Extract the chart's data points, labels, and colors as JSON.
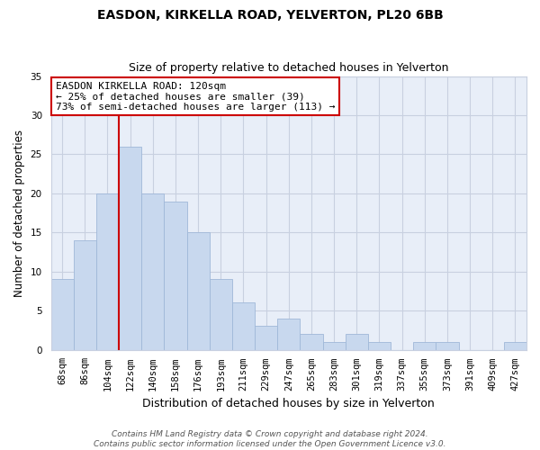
{
  "title": "EASDON, KIRKELLA ROAD, YELVERTON, PL20 6BB",
  "subtitle": "Size of property relative to detached houses in Yelverton",
  "xlabel": "Distribution of detached houses by size in Yelverton",
  "ylabel": "Number of detached properties",
  "bar_labels": [
    "68sqm",
    "86sqm",
    "104sqm",
    "122sqm",
    "140sqm",
    "158sqm",
    "176sqm",
    "193sqm",
    "211sqm",
    "229sqm",
    "247sqm",
    "265sqm",
    "283sqm",
    "301sqm",
    "319sqm",
    "337sqm",
    "355sqm",
    "373sqm",
    "391sqm",
    "409sqm",
    "427sqm"
  ],
  "bar_values": [
    9,
    14,
    20,
    26,
    20,
    19,
    15,
    9,
    6,
    3,
    4,
    2,
    1,
    2,
    1,
    0,
    1,
    1,
    0,
    0,
    1
  ],
  "bar_color": "#c8d8ee",
  "bar_edge_color": "#a0b8d8",
  "plot_bg_color": "#e8eef8",
  "vline_index": 3,
  "vline_color": "#cc0000",
  "annotation_text": "EASDON KIRKELLA ROAD: 120sqm\n← 25% of detached houses are smaller (39)\n73% of semi-detached houses are larger (113) →",
  "annotation_box_facecolor": "#ffffff",
  "annotation_box_edgecolor": "#cc0000",
  "ylim": [
    0,
    35
  ],
  "yticks": [
    0,
    5,
    10,
    15,
    20,
    25,
    30,
    35
  ],
  "grid_color": "#c8d0e0",
  "footer_line1": "Contains HM Land Registry data © Crown copyright and database right 2024.",
  "footer_line2": "Contains public sector information licensed under the Open Government Licence v3.0.",
  "title_fontsize": 10,
  "subtitle_fontsize": 9,
  "ylabel_fontsize": 8.5,
  "xlabel_fontsize": 9,
  "tick_fontsize": 7.5,
  "annotation_fontsize": 8,
  "footer_fontsize": 6.5
}
